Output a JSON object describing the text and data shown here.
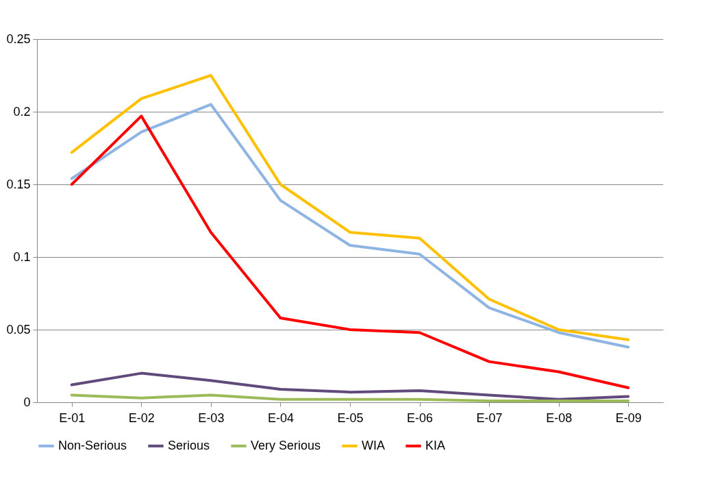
{
  "chart_data": {
    "type": "line",
    "categories": [
      "E-01",
      "E-02",
      "E-03",
      "E-04",
      "E-05",
      "E-06",
      "E-07",
      "E-08",
      "E-09"
    ],
    "series": [
      {
        "name": "Non-Serious",
        "color": "#8eb4e3",
        "values": [
          0.154,
          0.186,
          0.205,
          0.139,
          0.108,
          0.102,
          0.065,
          0.048,
          0.038
        ]
      },
      {
        "name": "Serious",
        "color": "#604a7b",
        "values": [
          0.012,
          0.02,
          0.015,
          0.009,
          0.007,
          0.008,
          0.005,
          0.002,
          0.004
        ]
      },
      {
        "name": "Very Serious",
        "color": "#9bbb59",
        "values": [
          0.005,
          0.003,
          0.005,
          0.002,
          0.002,
          0.002,
          0.001,
          0.001,
          0.001
        ]
      },
      {
        "name": "WIA",
        "color": "#ffc000",
        "values": [
          0.172,
          0.209,
          0.225,
          0.15,
          0.117,
          0.113,
          0.071,
          0.05,
          0.043
        ]
      },
      {
        "name": "KIA",
        "color": "#ff0000",
        "values": [
          0.15,
          0.197,
          0.117,
          0.058,
          0.05,
          0.048,
          0.028,
          0.021,
          0.01
        ]
      }
    ],
    "ylim": [
      0,
      0.25
    ],
    "yticks": [
      0,
      0.05,
      0.1,
      0.15,
      0.2,
      0.25
    ],
    "grid": "y",
    "legend": "bottom",
    "marker": "none",
    "line_style": "solid"
  }
}
